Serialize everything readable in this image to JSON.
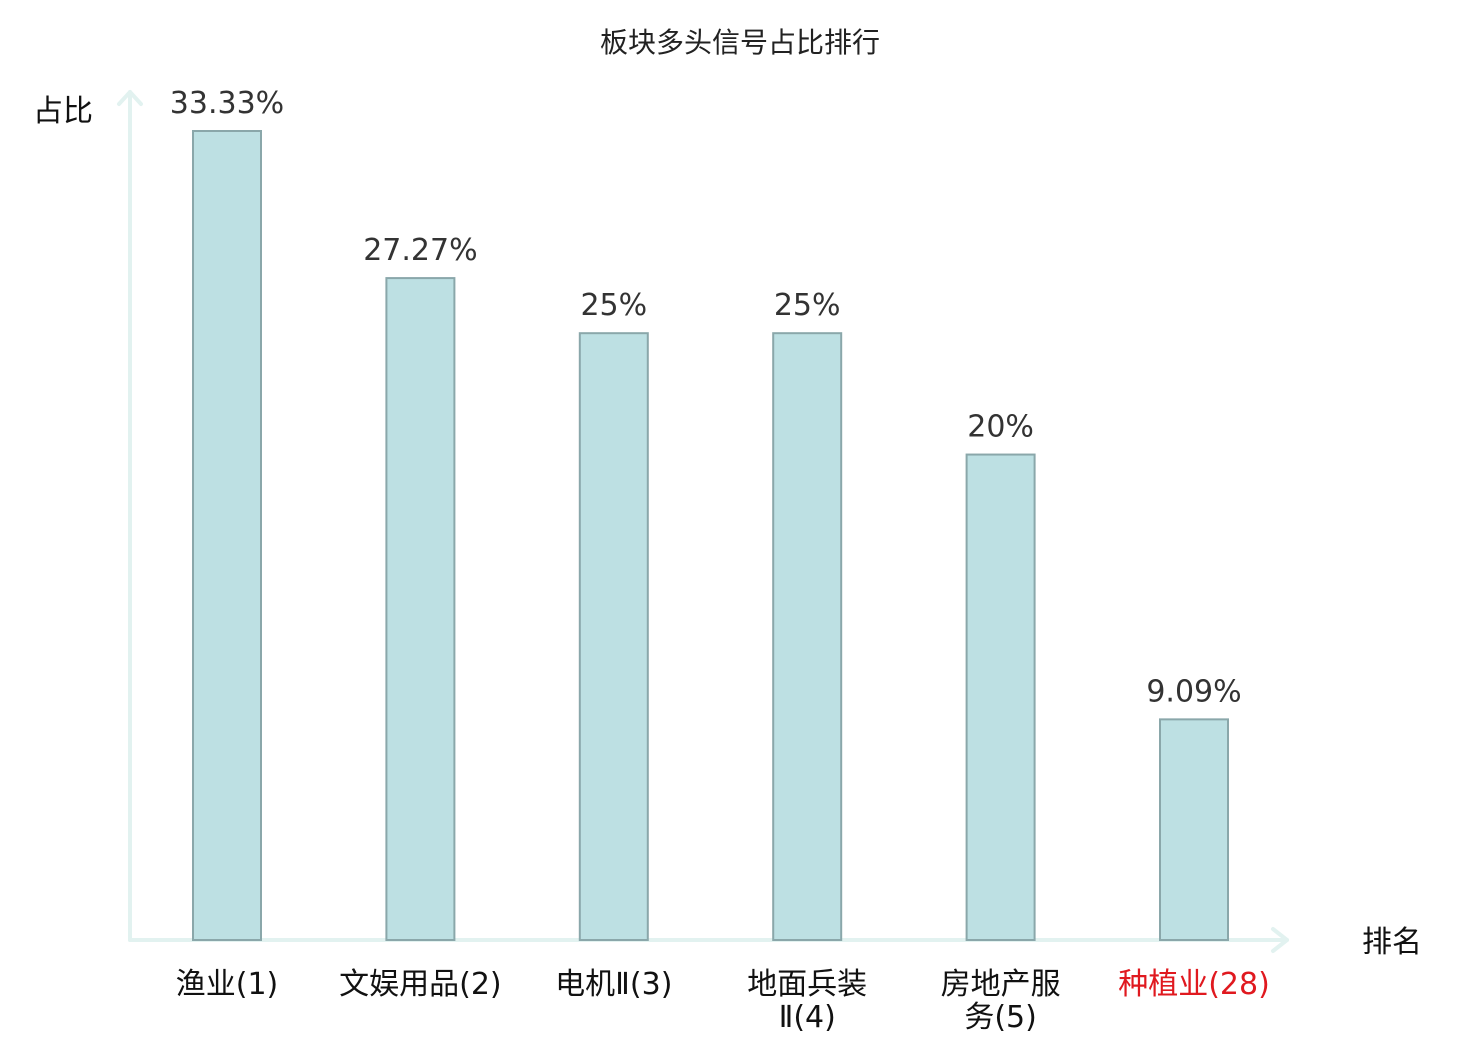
{
  "chart_data": {
    "type": "bar",
    "title": "板块多头信号占比排行",
    "xlabel": "排名",
    "ylabel": "占比",
    "categories": [
      [
        "渔业(1)"
      ],
      [
        "文娱用品(2)"
      ],
      [
        "电机Ⅱ(3)"
      ],
      [
        "地面兵装",
        "Ⅱ(4)"
      ],
      [
        "房地产服",
        "务(5)"
      ],
      [
        "种植业(28)"
      ]
    ],
    "values": [
      33.33,
      27.27,
      25,
      25,
      20,
      9.09
    ],
    "value_labels": [
      "33.33%",
      "27.27%",
      "25%",
      "25%",
      "20%",
      "9.09%"
    ],
    "unit": "%",
    "ylim": [
      0,
      33.33
    ],
    "grid": false,
    "legend": "none",
    "colors": {
      "bar_fill": "#bde0e3",
      "bar_stroke": "#8aa7aa",
      "axis": "#e2f2f0",
      "category_text": "#111111",
      "highlight_text": "#e0191f"
    },
    "highlight_index": 5
  }
}
